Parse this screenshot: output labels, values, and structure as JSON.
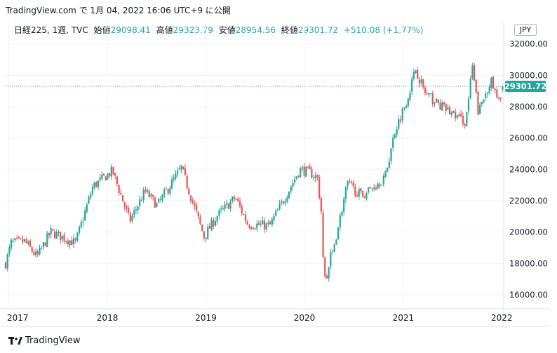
{
  "header": {
    "text": "TradingView.com で 1月 04, 2022 16:06 UTC+9 に公開"
  },
  "legend": {
    "symbol": "日経225, 1週, TVC",
    "open_label": "始値",
    "open": "29098.41",
    "high_label": "高値",
    "high": "29323.79",
    "low_label": "安値",
    "low": "28954.56",
    "close_label": "終値",
    "close": "29301.72",
    "change": "+510.08 (+1.77%)"
  },
  "currency": "JPY",
  "last_price_label": "29301.72",
  "footer": {
    "brand": "TradingView"
  },
  "colors": {
    "up": "#26a69a",
    "down": "#ef5350",
    "grid": "#f0f3fa",
    "axis": "#e0e3eb"
  },
  "chart_data": {
    "type": "candlestick",
    "title": "日経225, 1週, TVC",
    "ylim": [
      15100,
      32300
    ],
    "yticks": [
      16000,
      18000,
      20000,
      22000,
      24000,
      26000,
      28000,
      30000,
      32000
    ],
    "ytick_labels": [
      "16000.00",
      "18000.00",
      "20000.00",
      "22000.00",
      "24000.00",
      "26000.00",
      "28000.00",
      "30000.00",
      "32000.00"
    ],
    "xticks": [
      "2017",
      "2018",
      "2019",
      "2020",
      "2021",
      "2022"
    ],
    "last_close": 29301.72,
    "series": [
      {
        "name": "日経225",
        "anchors": [
          [
            "2016-12-20",
            18000
          ],
          [
            "2017-01-10",
            19300
          ],
          [
            "2017-03-01",
            19400
          ],
          [
            "2017-04-15",
            18400
          ],
          [
            "2017-06-05",
            20000
          ],
          [
            "2017-09-05",
            19300
          ],
          [
            "2017-11-08",
            22900
          ],
          [
            "2018-01-20",
            23900
          ],
          [
            "2018-03-25",
            20700
          ],
          [
            "2018-05-20",
            22600
          ],
          [
            "2018-07-05",
            21700
          ],
          [
            "2018-10-02",
            24100
          ],
          [
            "2018-12-25",
            19700
          ],
          [
            "2019-02-10",
            21000
          ],
          [
            "2019-04-20",
            22200
          ],
          [
            "2019-06-05",
            20500
          ],
          [
            "2019-08-26",
            20400
          ],
          [
            "2019-12-15",
            24000
          ],
          [
            "2020-01-20",
            23800
          ],
          [
            "2020-02-21",
            23400
          ],
          [
            "2020-03-19",
            16600
          ],
          [
            "2020-06-08",
            23100
          ],
          [
            "2020-07-30",
            22300
          ],
          [
            "2020-10-26",
            23500
          ],
          [
            "2020-11-30",
            26400
          ],
          [
            "2021-01-15",
            28500
          ],
          [
            "2021-02-16",
            30400
          ],
          [
            "2021-03-25",
            28800
          ],
          [
            "2021-05-15",
            28100
          ],
          [
            "2021-08-20",
            27000
          ],
          [
            "2021-09-14",
            30500
          ],
          [
            "2021-10-06",
            27600
          ],
          [
            "2021-11-20",
            29700
          ],
          [
            "2021-12-20",
            28200
          ],
          [
            "2022-01-04",
            29301.72
          ]
        ]
      }
    ]
  }
}
